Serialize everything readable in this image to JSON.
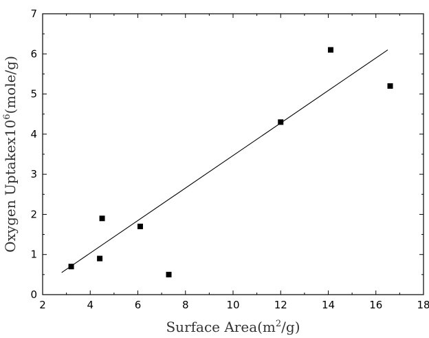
{
  "chart_data": {
    "type": "scatter",
    "xlabel": "Surface Area(m",
    "xlabel_sup": "2",
    "xlabel_tail": "/g)",
    "ylabel": "Oxygen Uptakex10",
    "ylabel_sup": "6",
    "ylabel_tail": "(mole/g)",
    "xlim": [
      2,
      18
    ],
    "ylim": [
      0,
      7
    ],
    "x_ticks": [
      "2",
      "4",
      "6",
      "8",
      "10",
      "12",
      "14",
      "16",
      "18"
    ],
    "y_ticks": [
      "0",
      "1",
      "2",
      "3",
      "4",
      "5",
      "6",
      "7"
    ],
    "grid": false,
    "series": [
      {
        "marker": "square",
        "color": "#000000",
        "x": [
          3.2,
          4.4,
          4.5,
          6.1,
          7.3,
          12.0,
          14.1,
          16.6
        ],
        "y": [
          0.7,
          0.9,
          1.9,
          1.7,
          0.5,
          4.3,
          6.1,
          5.2
        ]
      }
    ],
    "fit_line": {
      "x": [
        2.8,
        16.5
      ],
      "y": [
        0.55,
        6.1
      ]
    }
  }
}
